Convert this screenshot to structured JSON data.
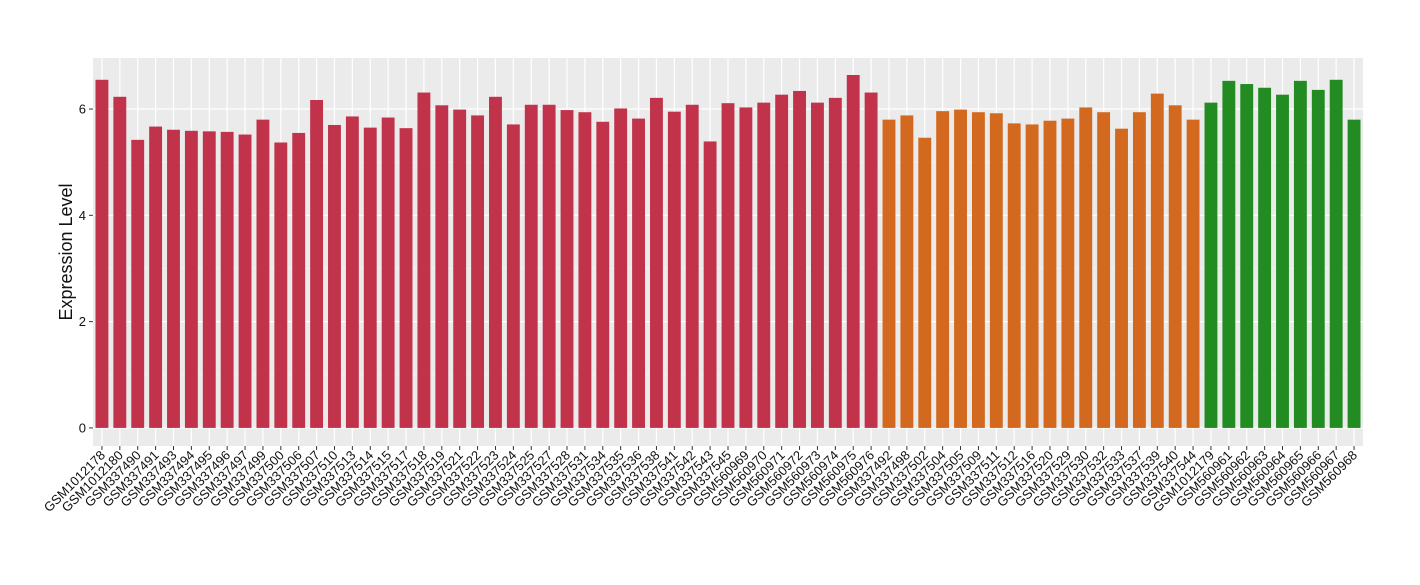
{
  "chart_data": {
    "type": "bar",
    "y_label": "Expression Level",
    "categories": [
      "GSM1012178",
      "GSM1012180",
      "GSM337490",
      "GSM337491",
      "GSM337493",
      "GSM337494",
      "GSM337495",
      "GSM337496",
      "GSM337497",
      "GSM337499",
      "GSM337500",
      "GSM337506",
      "GSM337507",
      "GSM337510",
      "GSM337513",
      "GSM337514",
      "GSM337515",
      "GSM337517",
      "GSM337518",
      "GSM337519",
      "GSM337521",
      "GSM337522",
      "GSM337523",
      "GSM337524",
      "GSM337525",
      "GSM337527",
      "GSM337528",
      "GSM337531",
      "GSM337534",
      "GSM337535",
      "GSM337536",
      "GSM337538",
      "GSM337541",
      "GSM337542",
      "GSM337543",
      "GSM337545",
      "GSM560969",
      "GSM560970",
      "GSM560971",
      "GSM560972",
      "GSM560973",
      "GSM560974",
      "GSM560975",
      "GSM560976",
      "GSM337492",
      "GSM337498",
      "GSM337502",
      "GSM337504",
      "GSM337505",
      "GSM337509",
      "GSM337511",
      "GSM337512",
      "GSM337516",
      "GSM337520",
      "GSM337529",
      "GSM337530",
      "GSM337532",
      "GSM337533",
      "GSM337537",
      "GSM337539",
      "GSM337540",
      "GSM337544",
      "GSM1012179",
      "GSM560961",
      "GSM560962",
      "GSM560963",
      "GSM560964",
      "GSM560965",
      "GSM560966",
      "GSM560967",
      "GSM560968"
    ],
    "values": [
      6.55,
      6.23,
      5.42,
      5.67,
      5.61,
      5.59,
      5.58,
      5.57,
      5.52,
      5.8,
      5.37,
      5.55,
      6.17,
      5.7,
      5.86,
      5.65,
      5.84,
      5.64,
      6.31,
      6.07,
      5.99,
      5.88,
      6.23,
      5.71,
      6.08,
      6.08,
      5.98,
      5.94,
      5.76,
      6.01,
      5.82,
      6.21,
      5.95,
      6.08,
      5.39,
      6.11,
      6.03,
      6.12,
      6.27,
      6.34,
      6.12,
      6.21,
      6.64,
      6.31,
      5.8,
      5.88,
      5.46,
      5.96,
      5.99,
      5.94,
      5.92,
      5.73,
      5.71,
      5.78,
      5.82,
      6.03,
      5.94,
      5.63,
      5.94,
      6.29,
      6.07,
      5.8,
      6.12,
      6.53,
      6.47,
      6.4,
      6.27,
      6.53,
      6.36,
      6.55,
      5.8
    ],
    "colors": [
      "#c0334a",
      "#c0334a",
      "#c0334a",
      "#c0334a",
      "#c0334a",
      "#c0334a",
      "#c0334a",
      "#c0334a",
      "#c0334a",
      "#c0334a",
      "#c0334a",
      "#c0334a",
      "#c0334a",
      "#c0334a",
      "#c0334a",
      "#c0334a",
      "#c0334a",
      "#c0334a",
      "#c0334a",
      "#c0334a",
      "#c0334a",
      "#c0334a",
      "#c0334a",
      "#c0334a",
      "#c0334a",
      "#c0334a",
      "#c0334a",
      "#c0334a",
      "#c0334a",
      "#c0334a",
      "#c0334a",
      "#c0334a",
      "#c0334a",
      "#c0334a",
      "#c0334a",
      "#c0334a",
      "#c0334a",
      "#c0334a",
      "#c0334a",
      "#c0334a",
      "#c0334a",
      "#c0334a",
      "#c0334a",
      "#c0334a",
      "#d2691e",
      "#d2691e",
      "#d2691e",
      "#d2691e",
      "#d2691e",
      "#d2691e",
      "#d2691e",
      "#d2691e",
      "#d2691e",
      "#d2691e",
      "#d2691e",
      "#d2691e",
      "#d2691e",
      "#d2691e",
      "#d2691e",
      "#d2691e",
      "#d2691e",
      "#d2691e",
      "#228b22",
      "#228b22",
      "#228b22",
      "#228b22",
      "#228b22",
      "#228b22",
      "#228b22",
      "#228b22",
      "#228b22"
    ],
    "ylim": [
      -0.34,
      6.96
    ],
    "yticks": [
      0,
      2,
      4,
      6
    ],
    "grid": true
  }
}
